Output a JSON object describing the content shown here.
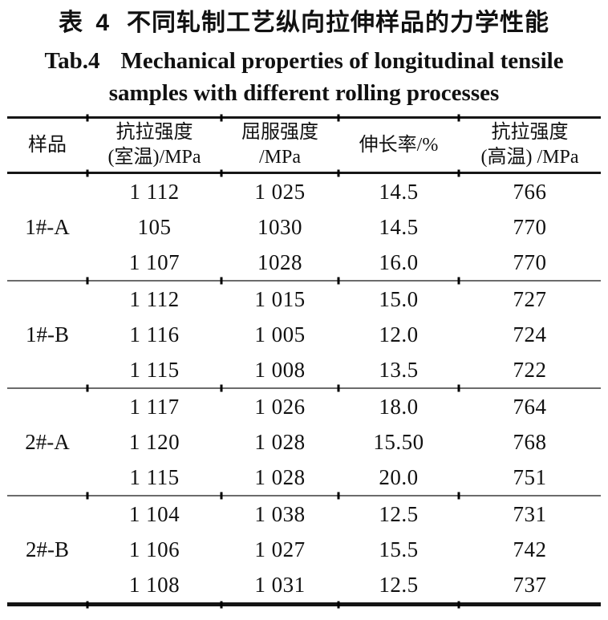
{
  "page": {
    "title_zh": {
      "label": "表 4",
      "text": "不同轧制工艺纵向拉伸样品的力学性能"
    },
    "title_en": {
      "label": "Tab.4",
      "line1": "Mechanical properties of longitudinal tensile",
      "line2": "samples with different rolling processes"
    }
  },
  "table": {
    "columns": [
      {
        "id": "sample",
        "line1": "样品",
        "line2": ""
      },
      {
        "id": "tensile-room",
        "line1": "抗拉强度",
        "line2": "(室温)/MPa"
      },
      {
        "id": "yield",
        "line1": "屈服强度",
        "line2": "/MPa"
      },
      {
        "id": "elongation",
        "line1": "伸长率/%",
        "line2": ""
      },
      {
        "id": "tensile-high",
        "line1": "抗拉强度",
        "line2": "(高温) /MPa"
      }
    ],
    "groups": [
      {
        "sample": "1#-A",
        "rows": [
          [
            "1 112",
            "1 025",
            "14.5",
            "766"
          ],
          [
            "105",
            "1030",
            "14.5",
            "770"
          ],
          [
            "1 107",
            "1028",
            "16.0",
            "770"
          ]
        ]
      },
      {
        "sample": "1#-B",
        "rows": [
          [
            "1 112",
            "1 015",
            "15.0",
            "727"
          ],
          [
            "1 116",
            "1 005",
            "12.0",
            "724"
          ],
          [
            "1 115",
            "1 008",
            "13.5",
            "722"
          ]
        ]
      },
      {
        "sample": "2#-A",
        "rows": [
          [
            "1 117",
            "1 026",
            "18.0",
            "764"
          ],
          [
            "1 120",
            "1 028",
            "15.50",
            "768"
          ],
          [
            "1 115",
            "1 028",
            "20.0",
            "751"
          ]
        ]
      },
      {
        "sample": "2#-B",
        "rows": [
          [
            "1 104",
            "1 038",
            "12.5",
            "731"
          ],
          [
            "1 106",
            "1 027",
            "15.5",
            "742"
          ],
          [
            "1 108",
            "1 031",
            "12.5",
            "737"
          ]
        ]
      }
    ]
  }
}
